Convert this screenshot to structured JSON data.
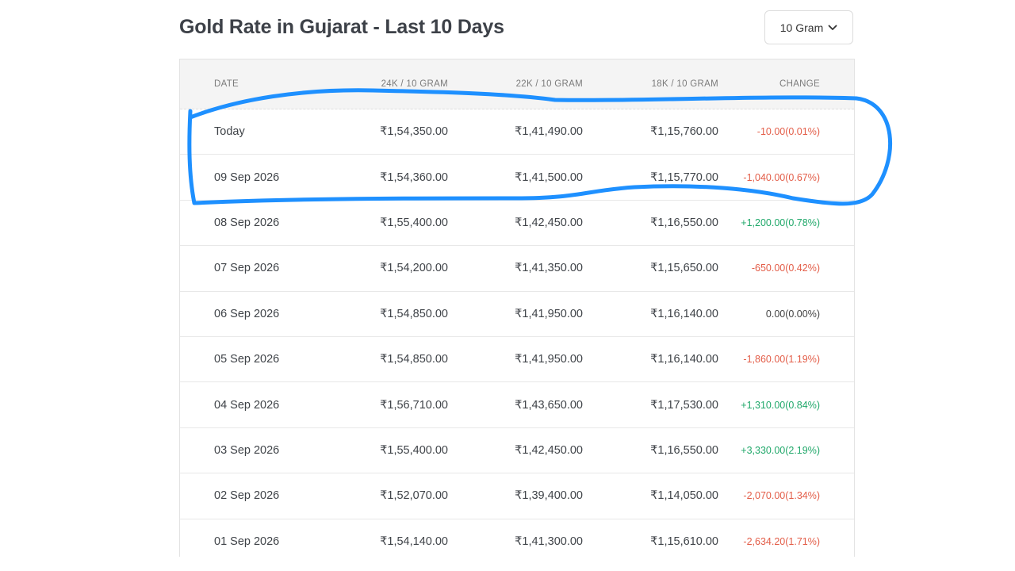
{
  "title": "Gold Rate in Gujarat - Last 10 Days",
  "unit_select": {
    "value": "10 Gram",
    "icon": "chevron-down-icon"
  },
  "table": {
    "headers": [
      "DATE",
      "24K / 10 GRAM",
      "22K / 10 GRAM",
      "18K / 10 GRAM",
      "CHANGE"
    ],
    "rows": [
      {
        "date": "Today",
        "k24": "₹1,54,350.00",
        "k22": "₹1,41,490.00",
        "k18": "₹1,15,760.00",
        "change": "-10.00(0.01%)",
        "trend": "neg"
      },
      {
        "date": "09 Sep 2026",
        "k24": "₹1,54,360.00",
        "k22": "₹1,41,500.00",
        "k18": "₹1,15,770.00",
        "change": "-1,040.00(0.67%)",
        "trend": "neg"
      },
      {
        "date": "08 Sep 2026",
        "k24": "₹1,55,400.00",
        "k22": "₹1,42,450.00",
        "k18": "₹1,16,550.00",
        "change": "+1,200.00(0.78%)",
        "trend": "pos"
      },
      {
        "date": "07 Sep 2026",
        "k24": "₹1,54,200.00",
        "k22": "₹1,41,350.00",
        "k18": "₹1,15,650.00",
        "change": "-650.00(0.42%)",
        "trend": "neg"
      },
      {
        "date": "06 Sep 2026",
        "k24": "₹1,54,850.00",
        "k22": "₹1,41,950.00",
        "k18": "₹1,16,140.00",
        "change": "0.00(0.00%)",
        "trend": "zero"
      },
      {
        "date": "05 Sep 2026",
        "k24": "₹1,54,850.00",
        "k22": "₹1,41,950.00",
        "k18": "₹1,16,140.00",
        "change": "-1,860.00(1.19%)",
        "trend": "neg"
      },
      {
        "date": "04 Sep 2026",
        "k24": "₹1,56,710.00",
        "k22": "₹1,43,650.00",
        "k18": "₹1,17,530.00",
        "change": "+1,310.00(0.84%)",
        "trend": "pos"
      },
      {
        "date": "03 Sep 2026",
        "k24": "₹1,55,400.00",
        "k22": "₹1,42,450.00",
        "k18": "₹1,16,550.00",
        "change": "+3,330.00(2.19%)",
        "trend": "pos"
      },
      {
        "date": "02 Sep 2026",
        "k24": "₹1,52,070.00",
        "k22": "₹1,39,400.00",
        "k18": "₹1,14,050.00",
        "change": "-2,070.00(1.34%)",
        "trend": "neg"
      },
      {
        "date": "01 Sep 2026",
        "k24": "₹1,54,140.00",
        "k22": "₹1,41,300.00",
        "k18": "₹1,15,610.00",
        "change": "-2,634.20(1.71%)",
        "trend": "neg"
      }
    ]
  },
  "colors": {
    "negative": "#e35d48",
    "positive": "#20a86a",
    "annotation": "#1e90ff"
  },
  "annotation": {
    "type": "hand-drawn-circle",
    "encloses_rows": [
      "Today",
      "09 Sep 2026"
    ]
  }
}
